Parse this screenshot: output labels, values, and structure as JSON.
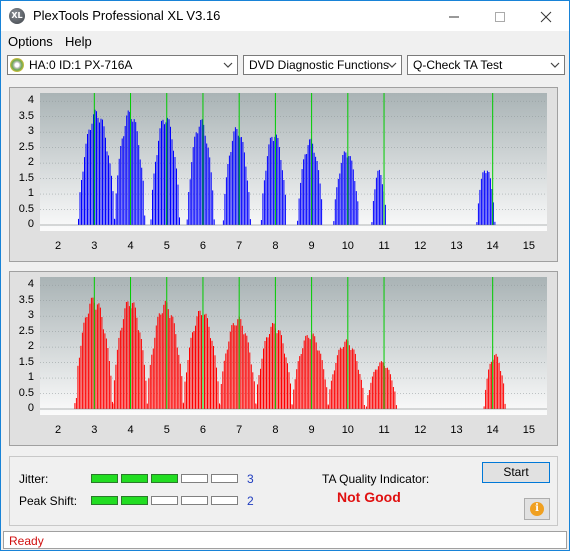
{
  "window": {
    "title": "PlexTools Professional XL V3.16",
    "app_icon_text": "XL"
  },
  "menu": {
    "options": "Options",
    "help": "Help"
  },
  "toolbar": {
    "drive": "HA:0 ID:1  PX-716A",
    "function": "DVD Diagnostic Functions",
    "test": "Q-Check TA Test"
  },
  "colors": {
    "top_bars": "#0000ff",
    "bottom_bars": "#ff0000",
    "grid_lines": "#00cc00",
    "meter_on": "#22dd22",
    "not_good": "#e01010"
  },
  "chart_data": [
    {
      "type": "area",
      "series_color": "blue",
      "y_ticks": [
        "4",
        "3.5",
        "3",
        "2.5",
        "2",
        "1.5",
        "1",
        "0.5",
        "0"
      ],
      "x_ticks": [
        "2",
        "3",
        "4",
        "5",
        "6",
        "7",
        "8",
        "9",
        "10",
        "11",
        "12",
        "13",
        "14",
        "15"
      ],
      "ylim": [
        0,
        4.2
      ],
      "xlim": [
        1.5,
        15.5
      ],
      "green_lines": [
        3,
        4,
        5,
        6,
        7,
        8,
        9,
        10,
        11,
        14
      ],
      "peaks": [
        {
          "start": 2.55,
          "end": 3.55,
          "peak": 3.75
        },
        {
          "start": 3.55,
          "end": 4.4,
          "peak": 3.75
        },
        {
          "start": 4.55,
          "end": 5.35,
          "peak": 3.6
        },
        {
          "start": 5.55,
          "end": 6.3,
          "peak": 3.45
        },
        {
          "start": 6.55,
          "end": 7.3,
          "peak": 3.2
        },
        {
          "start": 7.6,
          "end": 8.3,
          "peak": 3.05
        },
        {
          "start": 8.6,
          "end": 9.3,
          "peak": 2.8
        },
        {
          "start": 9.6,
          "end": 10.3,
          "peak": 2.45
        },
        {
          "start": 10.65,
          "end": 11.05,
          "peak": 1.8
        },
        {
          "start": 13.55,
          "end": 14.05,
          "peak": 1.9
        }
      ]
    },
    {
      "type": "area",
      "series_color": "red",
      "y_ticks": [
        "4",
        "3.5",
        "3",
        "2.5",
        "2",
        "1.5",
        "1",
        "0.5",
        "0"
      ],
      "x_ticks": [
        "2",
        "3",
        "4",
        "5",
        "6",
        "7",
        "8",
        "9",
        "10",
        "11",
        "12",
        "13",
        "14",
        "15"
      ],
      "ylim": [
        0,
        4.2
      ],
      "xlim": [
        1.5,
        15.5
      ],
      "green_lines": [
        3,
        4,
        5,
        6,
        7,
        8,
        9,
        10,
        11,
        14
      ],
      "peaks": [
        {
          "start": 2.45,
          "end": 3.5,
          "peak": 3.65
        },
        {
          "start": 3.5,
          "end": 4.45,
          "peak": 3.6
        },
        {
          "start": 4.45,
          "end": 5.45,
          "peak": 3.5
        },
        {
          "start": 5.45,
          "end": 6.45,
          "peak": 3.25
        },
        {
          "start": 6.45,
          "end": 7.45,
          "peak": 3.0
        },
        {
          "start": 7.45,
          "end": 8.45,
          "peak": 2.8
        },
        {
          "start": 8.45,
          "end": 9.45,
          "peak": 2.5
        },
        {
          "start": 9.45,
          "end": 10.45,
          "peak": 2.25
        },
        {
          "start": 10.5,
          "end": 11.35,
          "peak": 1.55
        },
        {
          "start": 13.75,
          "end": 14.35,
          "peak": 1.8
        }
      ]
    }
  ],
  "meters": {
    "jitter": {
      "label": "Jitter:",
      "value": "3",
      "level": 3,
      "max": 5
    },
    "peak_shift": {
      "label": "Peak Shift:",
      "value": "2",
      "level": 2,
      "max": 5
    }
  },
  "quality": {
    "label": "TA Quality Indicator:",
    "result": "Not Good"
  },
  "buttons": {
    "start": "Start",
    "info_icon": "i"
  },
  "status": {
    "text": "Ready"
  }
}
